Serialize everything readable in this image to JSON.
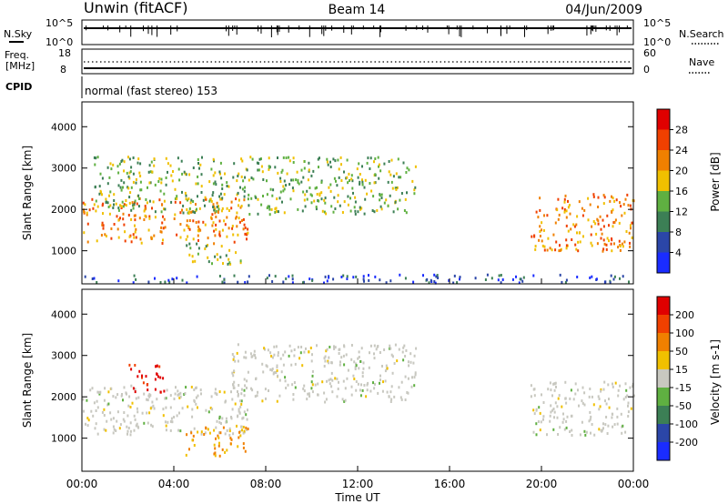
{
  "header": {
    "station": "Unwin (fitACF)",
    "beam": "Beam 14",
    "date": "04/Jun/2009"
  },
  "strip": {
    "nsky_label": "N.Sky",
    "nsearch_label": "N.Search",
    "nsky_ticks": [
      "10^5",
      "10^0"
    ],
    "nsearch_ticks": [
      "10^5",
      "10^0"
    ],
    "freq_label": [
      "Freq.",
      "[MHz]"
    ],
    "freq_ticks": [
      18,
      8
    ],
    "nave_label": "Nave",
    "nave_ticks": [
      60,
      0
    ],
    "cpid_label": "CPID",
    "cpid_text": "normal (fast stereo) 153"
  },
  "chart_data": [
    {
      "type": "heatmap",
      "name": "power",
      "ylabel": "Slant Range [km]",
      "yticks": [
        1000,
        2000,
        3000,
        4000
      ],
      "ylim": [
        200,
        4600
      ],
      "xlim": [
        0,
        24
      ],
      "colorbar": {
        "label": "Power [dB]",
        "ticks": [
          "4",
          "8",
          "12",
          "16",
          "20",
          "24",
          "28"
        ],
        "colors": [
          "#1a2cff",
          "#2b46a8",
          "#3c7f55",
          "#5fb041",
          "#f0c000",
          "#f08000",
          "#f04000",
          "#e00000"
        ]
      },
      "echo_regions": [
        {
          "t0": 0.0,
          "t1": 7.2,
          "r0": 1200,
          "r1": 2300,
          "level": "high"
        },
        {
          "t0": 0.5,
          "t1": 14.5,
          "r0": 1900,
          "r1": 3300,
          "level": "medium"
        },
        {
          "t0": 4.5,
          "t1": 7.0,
          "r0": 700,
          "r1": 1200,
          "level": "medium"
        },
        {
          "t0": 19.5,
          "t1": 24.0,
          "r0": 1000,
          "r1": 2400,
          "level": "high"
        },
        {
          "t0": 0.0,
          "t1": 24.0,
          "r0": 250,
          "r1": 450,
          "level": "low"
        }
      ]
    },
    {
      "type": "heatmap",
      "name": "velocity",
      "ylabel": "Slant Range [km]",
      "yticks": [
        1000,
        2000,
        3000,
        4000
      ],
      "ylim": [
        200,
        4600
      ],
      "xlim": [
        0,
        24
      ],
      "xticks": [
        "00:00",
        "04:00",
        "08:00",
        "12:00",
        "16:00",
        "20:00",
        "00:00"
      ],
      "xlabel": "Time UT",
      "colorbar": {
        "label": "Velocity [m s-1]",
        "ticks": [
          "200",
          "100",
          "50",
          "15",
          "-15",
          "-50",
          "-100",
          "-200"
        ],
        "colors": [
          "#1a2cff",
          "#2b46a8",
          "#3c7f55",
          "#5fb041",
          "#c8c8c0",
          "#f0c000",
          "#f08000",
          "#f04000",
          "#e00000"
        ]
      },
      "echo_regions": [
        {
          "t0": 0.0,
          "t1": 7.2,
          "r0": 1100,
          "r1": 2300,
          "color": "gray"
        },
        {
          "t0": 6.5,
          "t1": 14.5,
          "r0": 1900,
          "r1": 3300,
          "color": "gray"
        },
        {
          "t0": 2.0,
          "t1": 3.6,
          "r0": 2100,
          "r1": 2800,
          "color": "red"
        },
        {
          "t0": 4.5,
          "t1": 7.2,
          "r0": 600,
          "r1": 1300,
          "color": "orange"
        },
        {
          "t0": 19.5,
          "t1": 24.0,
          "r0": 1100,
          "r1": 2400,
          "color": "gray"
        }
      ]
    }
  ]
}
